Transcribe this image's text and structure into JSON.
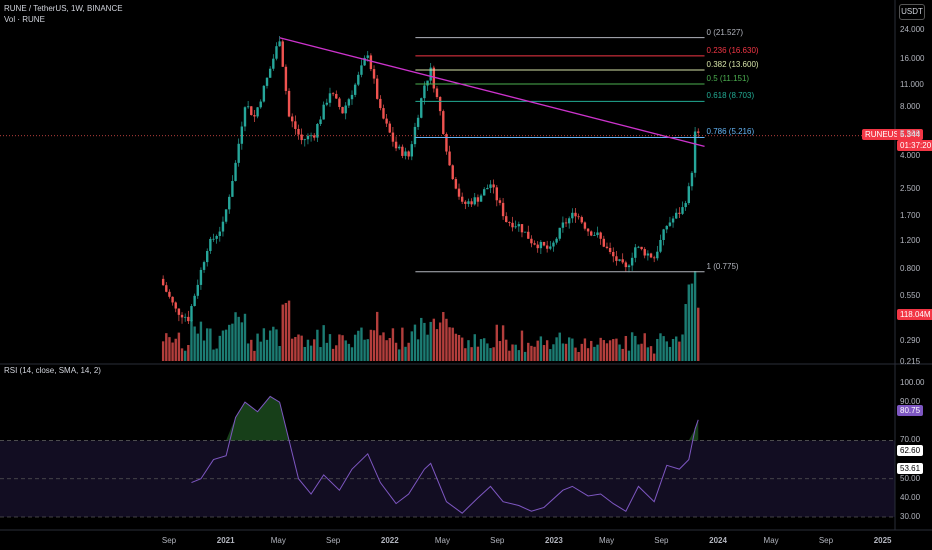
{
  "header": {
    "title": "RUNE / TetherUS, 1W, BINANCE",
    "volume_label": "Vol · RUNE",
    "rsi_label": "RSI (14, close, SMA, 14, 2)",
    "currency_button": "USDT"
  },
  "badges": {
    "symbol": "RUNEUSDT",
    "price": "5.344",
    "countdown": "01:37:20",
    "volume": "118.04M",
    "rsi": "80.75",
    "rsi_b": "62.60",
    "rsi_c": "53.61"
  },
  "colors": {
    "up": "#26a69a",
    "down": "#ef5350",
    "trendline": "#cc33cc",
    "rsi_line": "#7e57c2",
    "rsi_band": "#120d22"
  },
  "chart_data": [
    {
      "type": "candlestick",
      "title": "RUNE / TetherUS, 1W, BINANCE",
      "y_scale": "log",
      "y_ticks": [
        "24.000",
        "16.000",
        "11.000",
        "8.000",
        "5.500",
        "4.000",
        "2.500",
        "1.700",
        "1.200",
        "0.800",
        "0.550",
        "0.290",
        "0.215"
      ],
      "x_ticks": [
        "Sep",
        "2021",
        "May",
        "Sep",
        "2022",
        "May",
        "Sep",
        "2023",
        "May",
        "Sep",
        "2024",
        "May",
        "Sep",
        "2025"
      ],
      "price_path": [
        [
          "2020-08-10",
          0.7
        ],
        [
          "2020-09-14",
          0.45
        ],
        [
          "2020-10-12",
          0.4
        ],
        [
          "2020-11-23",
          1.1
        ],
        [
          "2020-12-28",
          1.5
        ],
        [
          "2021-01-25",
          3.6
        ],
        [
          "2021-02-15",
          8.5
        ],
        [
          "2021-03-08",
          7.0
        ],
        [
          "2021-04-05",
          12.0
        ],
        [
          "2021-05-03",
          21.5
        ],
        [
          "2021-05-24",
          7.0
        ],
        [
          "2021-06-21",
          5.0
        ],
        [
          "2021-07-19",
          5.5
        ],
        [
          "2021-08-23",
          10.0
        ],
        [
          "2021-09-20",
          7.5
        ],
        [
          "2021-10-18",
          11.0
        ],
        [
          "2021-11-15",
          17.5
        ],
        [
          "2021-12-13",
          7.5
        ],
        [
          "2022-01-17",
          4.5
        ],
        [
          "2022-02-14",
          4.0
        ],
        [
          "2022-03-21",
          11.0
        ],
        [
          "2022-04-04",
          13.5
        ],
        [
          "2022-04-25",
          7.5
        ],
        [
          "2022-05-16",
          3.5
        ],
        [
          "2022-06-13",
          2.0
        ],
        [
          "2022-07-18",
          2.2
        ],
        [
          "2022-08-15",
          2.7
        ],
        [
          "2022-09-19",
          1.6
        ],
        [
          "2022-10-17",
          1.5
        ],
        [
          "2022-11-14",
          1.2
        ],
        [
          "2022-12-26",
          1.05
        ],
        [
          "2023-01-23",
          1.5
        ],
        [
          "2023-02-20",
          1.8
        ],
        [
          "2023-03-20",
          1.4
        ],
        [
          "2023-04-10",
          1.3
        ],
        [
          "2023-05-08",
          1.0
        ],
        [
          "2023-06-12",
          0.8
        ],
        [
          "2023-07-03",
          1.1
        ],
        [
          "2023-08-14",
          0.95
        ],
        [
          "2023-09-11",
          1.5
        ],
        [
          "2023-10-16",
          1.9
        ],
        [
          "2023-10-30",
          2.5
        ],
        [
          "2023-11-06",
          3.3
        ],
        [
          "2023-11-13",
          5.5
        ],
        [
          "2023-11-20",
          5.344
        ]
      ],
      "fibonacci": [
        {
          "label": "0 (21.527)",
          "price": 21.527,
          "color": "#b2b5be"
        },
        {
          "label": "0.236 (16.630)",
          "price": 16.63,
          "color": "#f23645"
        },
        {
          "label": "0.382 (13.600)",
          "price": 13.6,
          "color": "#d6e3a8"
        },
        {
          "label": "0.5 (11.151)",
          "price": 11.151,
          "color": "#4caf50"
        },
        {
          "label": "0.618 (8.703)",
          "price": 8.703,
          "color": "#22ab94"
        },
        {
          "label": "0.786 (5.216)",
          "price": 5.216,
          "color": "#64b5f6"
        },
        {
          "label": "1 (0.775)",
          "price": 0.775,
          "color": "#b2b5be"
        }
      ],
      "fib_range": [
        "2022-03-01",
        "2023-12-04"
      ],
      "trendline": {
        "from": [
          "2021-05-03",
          21.5
        ],
        "to": [
          "2023-12-04",
          4.6
        ]
      }
    },
    {
      "type": "line",
      "title": "RSI (14, close, SMA, 14, 2)",
      "y_ticks": [
        "100.00",
        "90.00",
        "70.00",
        "50.00",
        "40.00",
        "30.00"
      ],
      "bands": [
        70,
        50,
        30
      ],
      "rsi_path": [
        [
          "2020-10-19",
          48
        ],
        [
          "2020-11-09",
          50
        ],
        [
          "2020-12-07",
          60
        ],
        [
          "2021-01-04",
          62
        ],
        [
          "2021-01-25",
          82
        ],
        [
          "2021-02-15",
          90
        ],
        [
          "2021-03-15",
          85
        ],
        [
          "2021-04-12",
          93
        ],
        [
          "2021-05-03",
          90
        ],
        [
          "2021-05-24",
          70
        ],
        [
          "2021-06-14",
          50
        ],
        [
          "2021-07-12",
          42
        ],
        [
          "2021-08-09",
          52
        ],
        [
          "2021-09-13",
          44
        ],
        [
          "2021-10-11",
          55
        ],
        [
          "2021-11-15",
          63
        ],
        [
          "2021-12-13",
          48
        ],
        [
          "2022-01-17",
          37
        ],
        [
          "2022-02-14",
          42
        ],
        [
          "2022-03-21",
          55
        ],
        [
          "2022-04-04",
          58
        ],
        [
          "2022-05-09",
          38
        ],
        [
          "2022-06-13",
          32
        ],
        [
          "2022-07-18",
          40
        ],
        [
          "2022-08-15",
          46
        ],
        [
          "2022-09-12",
          38
        ],
        [
          "2022-10-17",
          36
        ],
        [
          "2022-11-14",
          33
        ],
        [
          "2022-12-12",
          35
        ],
        [
          "2023-01-23",
          44
        ],
        [
          "2023-02-13",
          46
        ],
        [
          "2023-03-20",
          41
        ],
        [
          "2023-04-17",
          42
        ],
        [
          "2023-05-15",
          37
        ],
        [
          "2023-06-12",
          33
        ],
        [
          "2023-07-10",
          46
        ],
        [
          "2023-08-14",
          38
        ],
        [
          "2023-09-11",
          57
        ],
        [
          "2023-10-09",
          55
        ],
        [
          "2023-10-30",
          60
        ],
        [
          "2023-11-13",
          76
        ],
        [
          "2023-11-20",
          80.75
        ]
      ]
    }
  ]
}
